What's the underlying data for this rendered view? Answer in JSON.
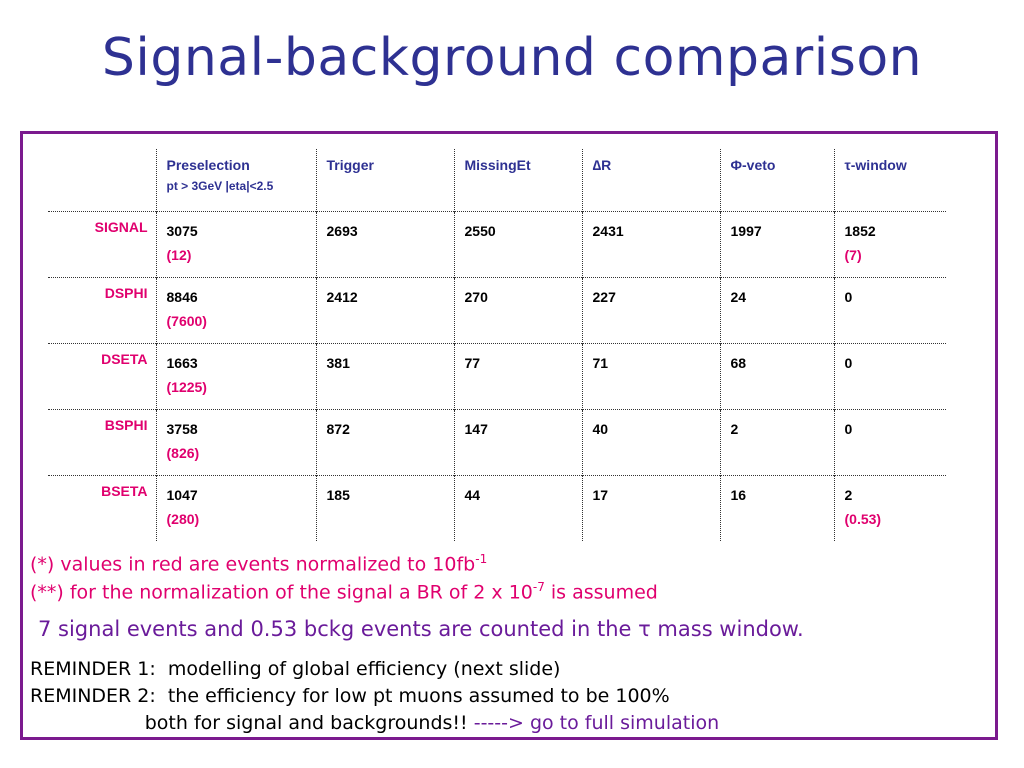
{
  "title": "Signal-background comparison",
  "table": {
    "headers": [
      {
        "label": "Preselection",
        "sub": "pt > 3GeV  |eta|<2.5"
      },
      {
        "label": "Trigger"
      },
      {
        "label": "MissingEt"
      },
      {
        "label": "∆R"
      },
      {
        "label": "Φ-veto"
      },
      {
        "label": "τ-window"
      }
    ],
    "rows": [
      {
        "label": "SIGNAL",
        "cells": [
          {
            "v": "3075",
            "n": "(12)"
          },
          {
            "v": "2693"
          },
          {
            "v": "2550"
          },
          {
            "v": "2431"
          },
          {
            "v": "1997"
          },
          {
            "v": "1852",
            "n": "(7)"
          }
        ]
      },
      {
        "label": "DSPHI",
        "cells": [
          {
            "v": "8846",
            "n": "(7600)"
          },
          {
            "v": "2412"
          },
          {
            "v": "270"
          },
          {
            "v": "227"
          },
          {
            "v": "24"
          },
          {
            "v": "0"
          }
        ]
      },
      {
        "label": "DSETA",
        "cells": [
          {
            "v": "1663",
            "n": "(1225)"
          },
          {
            "v": "381"
          },
          {
            "v": "77"
          },
          {
            "v": "71"
          },
          {
            "v": "68"
          },
          {
            "v": "0"
          }
        ]
      },
      {
        "label": "BSPHI",
        "cells": [
          {
            "v": "3758",
            "n": "(826)"
          },
          {
            "v": "872"
          },
          {
            "v": "147"
          },
          {
            "v": "40"
          },
          {
            "v": "2"
          },
          {
            "v": "0"
          }
        ]
      },
      {
        "label": "BSETA",
        "cells": [
          {
            "v": "1047",
            "n": "(280)"
          },
          {
            "v": "185"
          },
          {
            "v": "44"
          },
          {
            "v": "17"
          },
          {
            "v": "16"
          },
          {
            "v": "2",
            "n": "(0.53)"
          }
        ]
      }
    ]
  },
  "notes": {
    "note1_text": "(*) values in red are events normalized to 10fb",
    "note1_sup": "-1",
    "note2_text": "(**) for the normalization of the signal a BR of 2 x 10",
    "note2_sup": "-7",
    "note2_tail": " is assumed"
  },
  "summary": "7 signal events and 0.53 bckg events are counted in the τ mass window.",
  "reminders": {
    "r1": "REMINDER 1:  modelling of global efficiency (next slide)",
    "r2": "REMINDER 2:  the efficiency for low pt muons assumed to be 100%",
    "r3": "                   both for signal and backgrounds!! ",
    "r3_link": "-----> go to full simulation"
  }
}
